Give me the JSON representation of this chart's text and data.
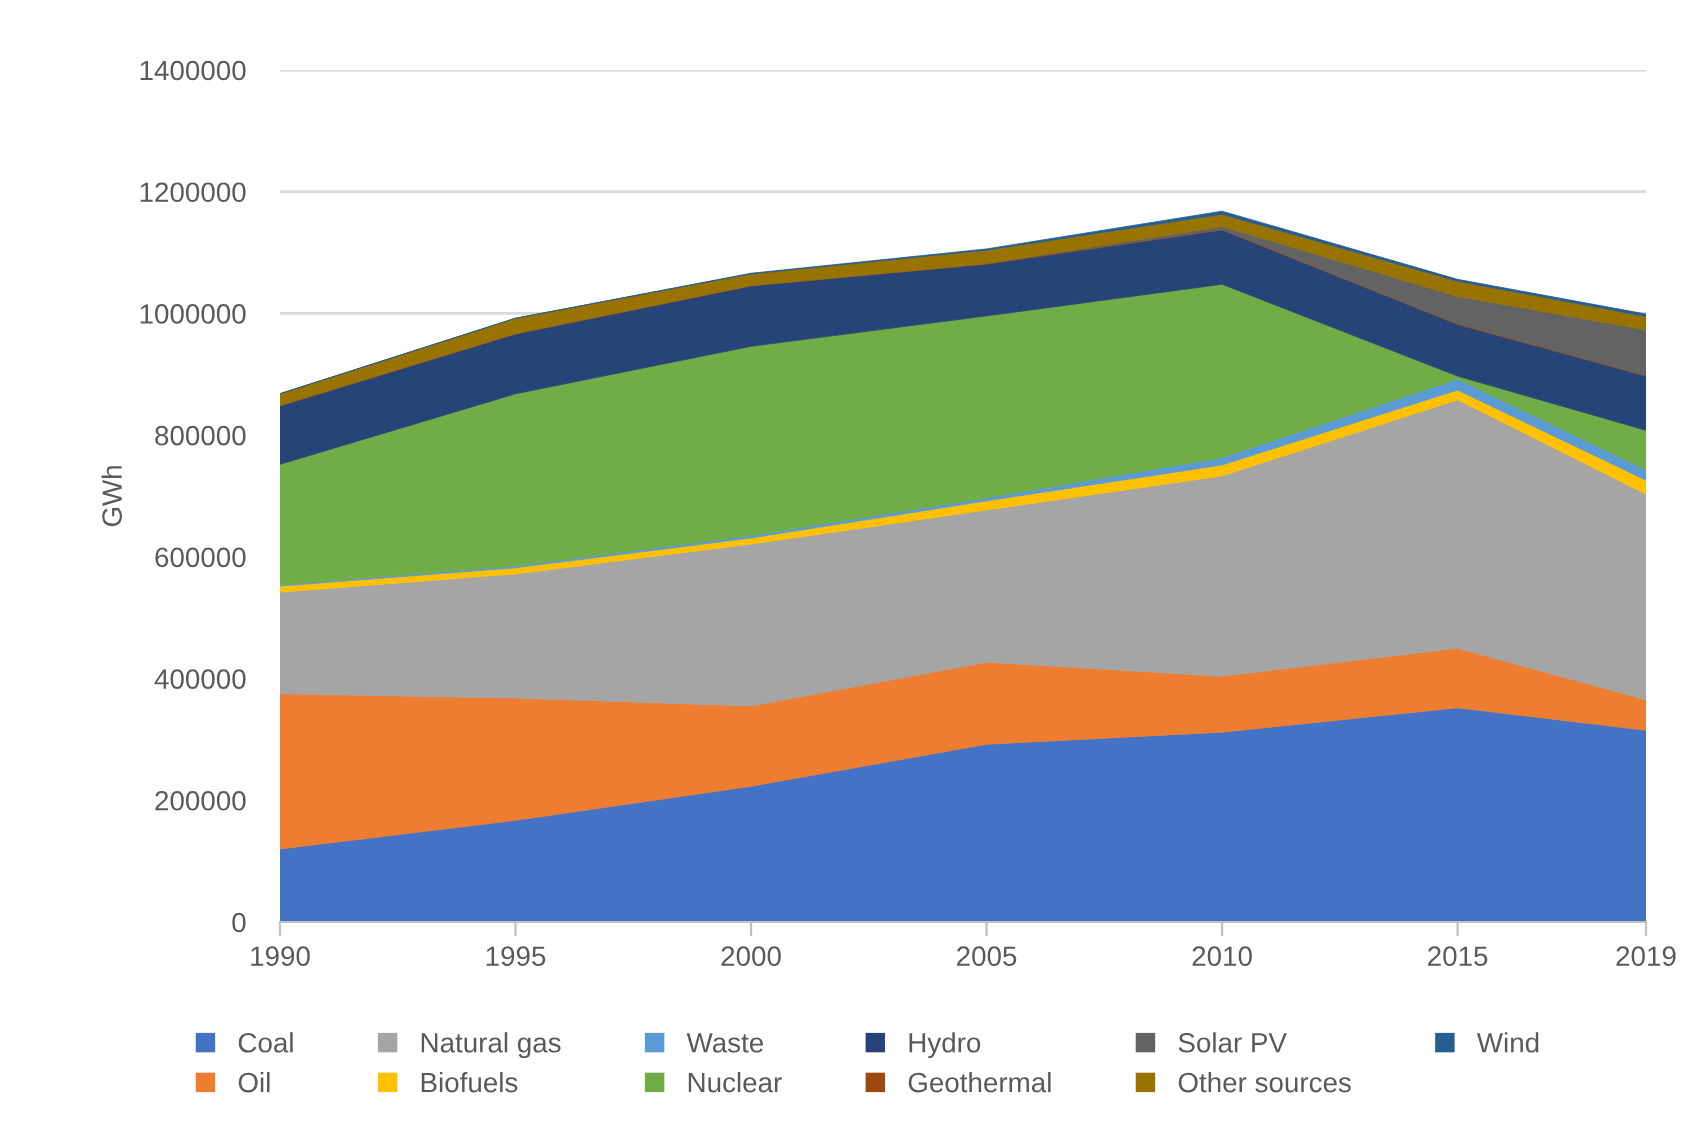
{
  "chart_data": {
    "type": "area",
    "stacked": true,
    "ylabel": "GWh",
    "x": [
      1990,
      1995,
      2000,
      2005,
      2010,
      2015,
      2019
    ],
    "xlim": [
      1990,
      2019
    ],
    "xticks": [
      1990,
      1995,
      2000,
      2005,
      2010,
      2015,
      2019
    ],
    "ylim": [
      0,
      1400000
    ],
    "yticks": [
      0,
      200000,
      400000,
      600000,
      800000,
      1000000,
      1200000,
      1400000
    ],
    "grid": "y",
    "legend": "bottom",
    "series": [
      {
        "name": "Coal",
        "color": "#4472c4",
        "values": [
          120000,
          167000,
          223000,
          292000,
          312000,
          352000,
          315000
        ]
      },
      {
        "name": "Oil",
        "color": "#ed7d31",
        "values": [
          255000,
          201000,
          132000,
          135000,
          92000,
          98000,
          50000
        ]
      },
      {
        "name": "Natural gas",
        "color": "#a5a5a5",
        "values": [
          167000,
          204000,
          266000,
          250000,
          329000,
          408000,
          338000
        ]
      },
      {
        "name": "Biofuels",
        "color": "#ffc000",
        "values": [
          10000,
          10000,
          10000,
          15000,
          18000,
          16000,
          23000
        ]
      },
      {
        "name": "Waste",
        "color": "#5b9bd5",
        "values": [
          2000,
          3000,
          4000,
          5000,
          12000,
          18000,
          17000
        ]
      },
      {
        "name": "Nuclear",
        "color": "#70ad47",
        "values": [
          198000,
          283000,
          311000,
          299000,
          285000,
          5000,
          65000
        ]
      },
      {
        "name": "Hydro",
        "color": "#264478",
        "values": [
          96000,
          98000,
          99000,
          85000,
          89000,
          85000,
          89000
        ]
      },
      {
        "name": "Geothermal",
        "color": "#9e480e",
        "values": [
          1000,
          1000,
          1000,
          1000,
          1000,
          1000,
          1000
        ]
      },
      {
        "name": "Solar PV",
        "color": "#636363",
        "values": [
          0,
          0,
          0,
          0,
          5000,
          45000,
          75000
        ]
      },
      {
        "name": "Other sources",
        "color": "#997300",
        "values": [
          19000,
          25000,
          19000,
          22000,
          20000,
          25000,
          22000
        ]
      },
      {
        "name": "Wind",
        "color": "#255e91",
        "values": [
          0,
          0,
          1000,
          2000,
          5000,
          3000,
          4000
        ]
      }
    ]
  }
}
